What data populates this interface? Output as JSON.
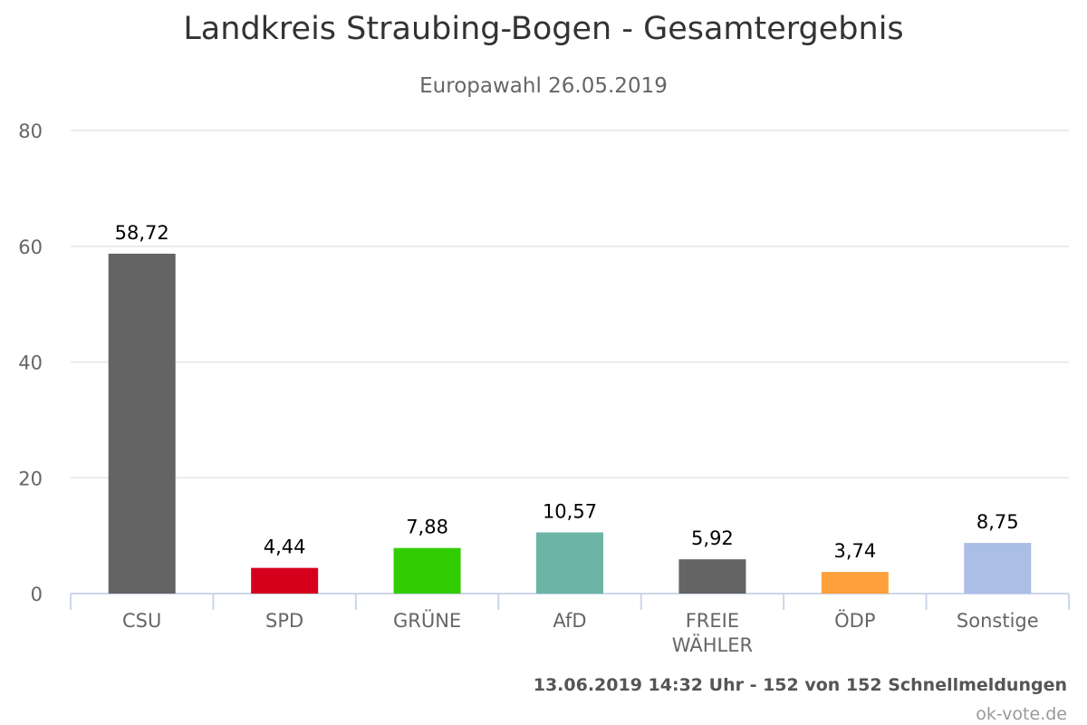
{
  "chart_data": {
    "type": "bar",
    "title": "Landkreis Straubing-Bogen - Gesamtergebnis",
    "subtitle": "Europawahl 26.05.2019",
    "categories": [
      "CSU",
      "SPD",
      "GRÜNE",
      "AfD",
      "FREIE WÄHLER",
      "ÖDP",
      "Sonstige"
    ],
    "values": [
      58.72,
      4.44,
      7.88,
      10.57,
      5.92,
      3.74,
      8.75
    ],
    "value_labels": [
      "58,72",
      "4,44",
      "7,88",
      "10,57",
      "5,92",
      "3,74",
      "8,75"
    ],
    "colors": [
      "#646464",
      "#d6001c",
      "#32cd00",
      "#6cb5a6",
      "#646464",
      "#ffa03c",
      "#aabee6"
    ],
    "ylim": [
      0,
      80
    ],
    "yticks": [
      0,
      20,
      40,
      60,
      80
    ],
    "grid": true,
    "legend": "none"
  },
  "footer": "13.06.2019 14:32 Uhr - 152 von 152 Schnellmeldungen",
  "credit": "ok-vote.de"
}
